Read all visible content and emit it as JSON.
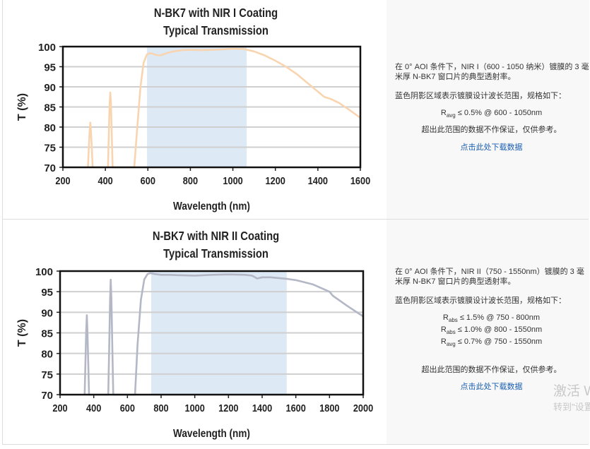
{
  "chart_data": [
    {
      "type": "line",
      "title_line1": "N-BK7 with NIR I Coating",
      "title_line2": "Typical Transmission",
      "xlabel": "Wavelength (nm)",
      "ylabel": "T (%)",
      "xlim": [
        200,
        1600
      ],
      "ylim": [
        70,
        100
      ],
      "xticks": [
        200,
        400,
        600,
        800,
        1000,
        1200,
        1400,
        1600
      ],
      "yticks": [
        70,
        75,
        80,
        85,
        90,
        95,
        100
      ],
      "shaded_band": [
        596,
        1065
      ],
      "band_color": "#dde9f5",
      "line_color": "#f8d5b0",
      "grid": true,
      "x": [
        318,
        322,
        326,
        329,
        332,
        336,
        340,
        412,
        416,
        420,
        423,
        426,
        430,
        434,
        536,
        550,
        565,
        580,
        595,
        605,
        620,
        640,
        660,
        690,
        720,
        760,
        800,
        850,
        900,
        950,
        1000,
        1050,
        1100,
        1150,
        1200,
        1250,
        1300,
        1350,
        1400,
        1430,
        1460,
        1500,
        1550,
        1600
      ],
      "y": [
        70,
        75,
        79,
        81.1,
        79,
        75,
        70,
        70,
        78,
        86,
        88.6,
        86,
        78,
        70,
        70,
        80,
        90,
        96,
        98,
        98.3,
        98.3,
        97.9,
        97.8,
        98.4,
        98.8,
        99.1,
        99.2,
        99.1,
        99.2,
        99.3,
        99.5,
        99.4,
        98.8,
        97.8,
        96.5,
        95,
        93.2,
        91,
        88.8,
        87.5,
        87,
        86,
        84.2,
        82.3
      ]
    },
    {
      "type": "line",
      "title_line1": "N-BK7 with NIR II Coating",
      "title_line2": "Typical Transmission",
      "xlabel": "Wavelength (nm)",
      "ylabel": "T (%)",
      "xlim": [
        200,
        2000
      ],
      "ylim": [
        70,
        100
      ],
      "xticks": [
        200,
        400,
        600,
        800,
        1000,
        1200,
        1400,
        1600,
        1800,
        2000
      ],
      "yticks": [
        70,
        75,
        80,
        85,
        90,
        95,
        100
      ],
      "shaded_band": [
        741,
        1546
      ],
      "band_color": "#dde9f5",
      "line_color": "#b3b7c6",
      "grid": true,
      "x": [
        346,
        350,
        355,
        359,
        363,
        368,
        372,
        486,
        492,
        497,
        501,
        505,
        510,
        516,
        645,
        660,
        680,
        700,
        720,
        736,
        760,
        800,
        850,
        900,
        1000,
        1100,
        1200,
        1300,
        1340,
        1370,
        1400,
        1450,
        1500,
        1550,
        1600,
        1700,
        1800,
        1820,
        1900,
        2000
      ],
      "y": [
        70,
        77,
        85,
        89.3,
        85,
        77,
        70,
        70,
        82,
        93,
        97.9,
        93,
        82,
        70,
        70,
        82,
        93,
        98,
        99.3,
        99.5,
        99.3,
        99.1,
        99.1,
        99,
        98.9,
        99.1,
        99.2,
        99.1,
        98.9,
        98.2,
        98.5,
        98.5,
        98.3,
        98.1,
        97.8,
        96.8,
        95,
        94,
        91.7,
        89
      ]
    }
  ],
  "panel1": {
    "desc1": "在 0° AOI 条件下，NIR I（600 - 1050 纳米）镀膜的 3 毫米厚 N-BK7 窗口片的典型透射率。",
    "desc2": "蓝色阴影区域表示镀膜设计波长范围，规格如下：",
    "specs": [
      {
        "sym": "R",
        "sub": "avg",
        "text": "≤ 0.5% @ 600 - 1050nm"
      }
    ],
    "disclaimer": "超出此范围的数据不作保证，仅供参考。",
    "download": "点击此处下载数据"
  },
  "panel2": {
    "desc1": "在 0° AOI 条件下，NIR II（750 - 1550nm）镀膜的 3 毫米厚 N-BK7 窗口片的典型透射率。",
    "desc2": "蓝色阴影区域表示镀膜设计波长范围，规格如下：",
    "specs": [
      {
        "sym": "R",
        "sub": "abs",
        "text": "≤ 1.5% @ 750 - 800nm"
      },
      {
        "sym": "R",
        "sub": "abs",
        "text": "≤ 1.0% @ 800 - 1550nm"
      },
      {
        "sym": "R",
        "sub": "avg",
        "text": "≤ 0.7% @ 750 - 1550nm"
      }
    ],
    "disclaimer": "超出此范围的数据不作保证，仅供参考。",
    "download": "点击此处下载数据"
  },
  "watermark": {
    "line1": "激活 W",
    "line2": "转到\"设置"
  }
}
